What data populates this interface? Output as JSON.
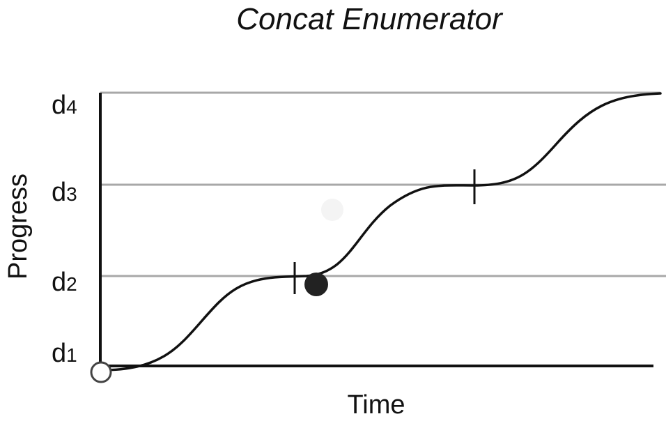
{
  "title": "Concat Enumerator",
  "x_axis": {
    "label": "Time"
  },
  "y_axis": {
    "label": "Progress",
    "ticks": [
      {
        "main": "d",
        "sub": "1"
      },
      {
        "main": "d",
        "sub": "2"
      },
      {
        "main": "d",
        "sub": "3"
      },
      {
        "main": "d",
        "sub": "4"
      }
    ]
  },
  "colors": {
    "curve": "#111111",
    "grid": "#a8a8a8",
    "start_marker_fill": "#ffffff",
    "current_marker_fill": "#222222"
  }
}
